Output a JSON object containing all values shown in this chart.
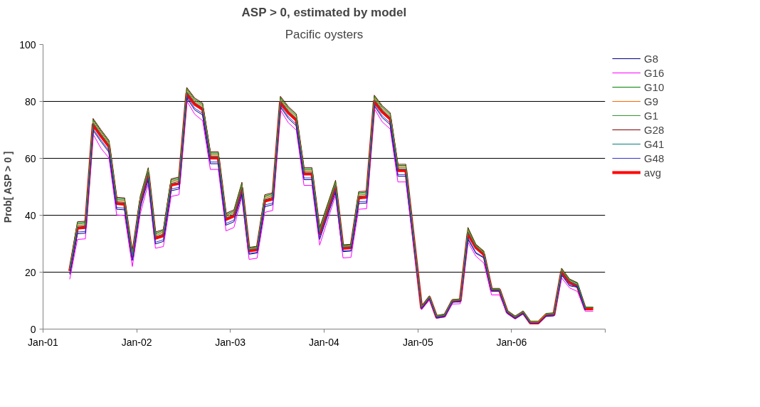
{
  "chart_data": {
    "type": "line",
    "title": "ASP > 0, estimated by model",
    "subtitle": "Pacific oysters",
    "ylabel": "Prob[ ASP > 0 ]",
    "x": [
      "2001-04-15",
      "2001-05-15",
      "2001-06-15",
      "2001-07-15",
      "2001-08-15",
      "2001-09-15",
      "2001-10-15",
      "2001-11-15",
      "2001-12-15",
      "2002-01-15",
      "2002-02-15",
      "2002-03-15",
      "2002-04-15",
      "2002-05-15",
      "2002-06-15",
      "2002-07-15",
      "2002-08-15",
      "2002-09-15",
      "2002-10-15",
      "2002-11-15",
      "2002-12-15",
      "2003-01-15",
      "2003-02-15",
      "2003-03-15",
      "2003-04-15",
      "2003-05-15",
      "2003-06-15",
      "2003-07-15",
      "2003-08-15",
      "2003-09-15",
      "2003-10-15",
      "2003-11-15",
      "2003-12-15",
      "2004-02-15",
      "2004-03-15",
      "2004-04-15",
      "2004-05-15",
      "2004-06-15",
      "2004-07-15",
      "2004-08-15",
      "2004-09-15",
      "2004-10-15",
      "2004-11-15",
      "2005-01-15",
      "2005-02-15",
      "2005-03-15",
      "2005-04-15",
      "2005-05-15",
      "2005-06-15",
      "2005-07-15",
      "2005-08-15",
      "2005-09-15",
      "2005-10-15",
      "2005-11-15",
      "2005-12-15",
      "2006-01-15",
      "2006-02-15",
      "2006-03-15",
      "2006-04-15",
      "2006-05-15",
      "2006-06-15",
      "2006-07-15",
      "2006-08-15",
      "2006-09-15",
      "2006-10-15",
      "2006-11-15"
    ],
    "series": [
      {
        "name": "G8",
        "color": "#000080",
        "values": [
          19.2,
          33.5,
          33.7,
          69.8,
          65.8,
          62.1,
          42.1,
          41.9,
          24.1,
          42.6,
          52.5,
          29.9,
          30.8,
          48.6,
          49.2,
          81.2,
          77,
          75.2,
          58.1,
          58.1,
          36.5,
          37.7,
          47.4,
          26.3,
          26.7,
          43,
          43.7,
          78,
          74,
          71.4,
          52.5,
          52.5,
          31.5,
          48.1,
          27.2,
          27.4,
          44.1,
          44.3,
          78.4,
          74.3,
          71.8,
          53.7,
          53.7,
          7.1,
          10.7,
          3.9,
          4.4,
          9.4,
          9.6,
          31.5,
          26.6,
          25,
          13.3,
          13.3,
          5.6,
          3.7,
          5.4,
          2,
          2,
          4.5,
          4.7,
          19,
          15.2,
          14.7,
          6.7,
          null
        ]
      },
      {
        "name": "G16",
        "color": "#ff00ff",
        "values": [
          17.5,
          31.5,
          31.7,
          68.5,
          63.5,
          60.1,
          40.1,
          39.9,
          22,
          40.6,
          51,
          28.4,
          29,
          46.6,
          47.2,
          80.2,
          75.5,
          73.2,
          56.1,
          56.1,
          34.5,
          35.7,
          46.5,
          24.5,
          24.9,
          41,
          41.7,
          77,
          72.5,
          69.9,
          50.5,
          50.5,
          29.5,
          47,
          25,
          25.2,
          42.1,
          42.3,
          77.5,
          72.8,
          70.3,
          51.7,
          51.7,
          6.8,
          10.2,
          3.8,
          4.2,
          8.8,
          8.9,
          30.5,
          25.6,
          23.2,
          12,
          12,
          5.4,
          3.6,
          5.3,
          2,
          2,
          4.4,
          4.6,
          18,
          14.5,
          13.2,
          6.3,
          6.3
        ]
      },
      {
        "name": "G10",
        "color": "#008000",
        "values": [
          21.4,
          37.3,
          37.5,
          73.6,
          69.6,
          65.9,
          45.9,
          45.7,
          26.3,
          46.4,
          56.3,
          33.7,
          34.6,
          52.4,
          53,
          84.5,
          80.8,
          79,
          61.9,
          61.9,
          40.3,
          41.5,
          51.2,
          28.5,
          28.9,
          46.8,
          47.5,
          81.4,
          77.8,
          75.2,
          56.3,
          56.3,
          35.3,
          51.9,
          29.4,
          29.6,
          47.9,
          48.1,
          81.8,
          78.1,
          75.6,
          57.5,
          57.5,
          8,
          11.6,
          4.7,
          5.2,
          10.3,
          10.5,
          35.3,
          29.6,
          27.2,
          14.2,
          14.2,
          6.5,
          4.5,
          6.3,
          2.7,
          2.7,
          5.4,
          5.6,
          21.2,
          17.4,
          16.1,
          7.6,
          7.6
        ]
      },
      {
        "name": "G9",
        "color": "#ff6600",
        "values": [
          21,
          36.5,
          36.7,
          72.8,
          68.8,
          65.1,
          45.1,
          44.9,
          25.9,
          45.6,
          55.5,
          32.9,
          33.8,
          51.6,
          52.2,
          83.7,
          80,
          78.2,
          61.1,
          61.1,
          39.5,
          40.7,
          50.4,
          28.1,
          28.5,
          46,
          46.7,
          80.6,
          77,
          74.4,
          55.5,
          55.5,
          34.5,
          51.1,
          29,
          29.2,
          47.1,
          47.3,
          81,
          77.3,
          74.8,
          56.7,
          56.7,
          7.8,
          11.4,
          4.5,
          5,
          10.1,
          10.3,
          34.5,
          29.2,
          26.8,
          14,
          14,
          6.3,
          4.3,
          6.1,
          2.5,
          2.5,
          5.2,
          5.4,
          20.8,
          17,
          null,
          null,
          null
        ]
      },
      {
        "name": "G1",
        "color": "#339933",
        "values": [
          21.2,
          36.9,
          37.1,
          73.2,
          69.2,
          65.5,
          45.5,
          45.3,
          26.1,
          46,
          55.9,
          33.3,
          34.2,
          52,
          52.6,
          84.1,
          80.4,
          78.6,
          61.5,
          61.5,
          39.9,
          41.1,
          50.8,
          28.3,
          28.7,
          46.4,
          47.1,
          81,
          77.4,
          74.8,
          55.9,
          55.9,
          34.9,
          51.5,
          29.2,
          29.4,
          47.5,
          47.7,
          81.4,
          77.7,
          75.2,
          57.1,
          57.1,
          7.9,
          11.5,
          4.6,
          5.1,
          10.2,
          10.4,
          34.9,
          29.4,
          27,
          14.1,
          14.1,
          6.4,
          4.4,
          6.2,
          2.6,
          2.6,
          5.3,
          5.5,
          21,
          17.2,
          15.9,
          7.5,
          7.5
        ]
      },
      {
        "name": "G28",
        "color": "#800000",
        "values": [
          21.6,
          37.7,
          37.9,
          74,
          70,
          66.3,
          46.3,
          46.1,
          26.5,
          46.8,
          56.7,
          34.1,
          35,
          52.8,
          53.4,
          84.9,
          81.2,
          79.4,
          62.3,
          62.3,
          40.7,
          41.9,
          51.6,
          28.7,
          29.1,
          47.2,
          47.9,
          81.8,
          78.2,
          75.6,
          56.7,
          56.7,
          35.7,
          52.3,
          29.6,
          29.8,
          48.3,
          48.5,
          82.2,
          78.5,
          76,
          57.9,
          57.9,
          8.1,
          11.7,
          4.8,
          5.3,
          10.4,
          10.6,
          35.7,
          29.8,
          27.4,
          14.3,
          14.3,
          6.6,
          4.6,
          6.4,
          2.8,
          2.8,
          5.5,
          5.7,
          21.4,
          17.6,
          16.3,
          7.7,
          7.7
        ]
      },
      {
        "name": "G41",
        "color": "#008080",
        "values": [
          20.8,
          36.1,
          36.3,
          72.4,
          68.4,
          64.7,
          44.7,
          44.5,
          25.7,
          45.2,
          55.1,
          32.5,
          33.4,
          51.2,
          51.8,
          83.3,
          79.6,
          77.8,
          60.7,
          60.7,
          39.1,
          40.3,
          50,
          27.9,
          28.3,
          45.6,
          46.3,
          80.2,
          76.6,
          74,
          55.1,
          55.1,
          34.1,
          50.7,
          28.8,
          29,
          46.7,
          46.9,
          80.6,
          76.9,
          74.4,
          56.3,
          56.3,
          7.7,
          11.3,
          4.4,
          4.9,
          10,
          10.2,
          34.1,
          29,
          26.6,
          13.9,
          13.9,
          6.2,
          4.2,
          6,
          2.4,
          null,
          5.1,
          5.3,
          20.6,
          16.8,
          15.5,
          7.3,
          null
        ]
      },
      {
        "name": "G48",
        "color": "#3333cc",
        "values": [
          19.5,
          34.1,
          34.3,
          70.4,
          66.4,
          62.7,
          42.7,
          42.5,
          24.4,
          43.2,
          53.1,
          30.5,
          31.4,
          49.2,
          49.8,
          81.8,
          77.6,
          75.8,
          58.7,
          58.7,
          37.1,
          38.3,
          48,
          26.6,
          27,
          43.6,
          44.3,
          78.6,
          74.6,
          72,
          53.1,
          53.1,
          32.1,
          48.7,
          27.5,
          27.7,
          44.7,
          44.9,
          79,
          74.9,
          72.4,
          54.3,
          54.3,
          7.2,
          10.8,
          4,
          4.5,
          9.5,
          9.7,
          32.1,
          26.9,
          25.3,
          13.4,
          13.4,
          5.7,
          3.8,
          5.5,
          2.1,
          2.1,
          4.6,
          4.8,
          19.3,
          15.5,
          15,
          6.8,
          null
        ]
      },
      {
        "name": "avg",
        "color": "#ff0000",
        "values": [
          20.4,
          35.5,
          35.7,
          71.8,
          67.8,
          64.1,
          44.1,
          43.9,
          25.3,
          44.6,
          54.5,
          31.9,
          32.8,
          50.6,
          51.2,
          82.7,
          79,
          77.2,
          60.1,
          60.1,
          38.5,
          39.7,
          49.4,
          27.5,
          27.9,
          45,
          45.7,
          79.6,
          76,
          73.4,
          54.5,
          54.5,
          33.5,
          50.1,
          28.4,
          28.6,
          46.1,
          46.3,
          80,
          76.3,
          73.8,
          55.7,
          55.7,
          7.5,
          11.1,
          4.2,
          4.7,
          9.8,
          10,
          33.5,
          28.6,
          26.2,
          13.7,
          13.7,
          6,
          4,
          5.8,
          2.2,
          2.2,
          4.9,
          5.1,
          20.2,
          16.4,
          15.1,
          7.1,
          7.1
        ]
      }
    ],
    "xlim": [
      "2001-01-01",
      "2007-01-01"
    ],
    "xticks": [
      {
        "value": "2001-01-01",
        "label": "Jan-01"
      },
      {
        "value": "2002-01-01",
        "label": "Jan-02"
      },
      {
        "value": "2003-01-01",
        "label": "Jan-03"
      },
      {
        "value": "2004-01-01",
        "label": "Jan-04"
      },
      {
        "value": "2005-01-01",
        "label": "Jan-05"
      },
      {
        "value": "2006-01-01",
        "label": "Jan-06"
      },
      {
        "value": "2007-01-01",
        "label": null
      }
    ],
    "ylim": [
      0,
      100
    ],
    "yticks": [
      0,
      20,
      40,
      60,
      80,
      100
    ],
    "grid": "y",
    "legend": "top right",
    "marker": "none",
    "line_style": "solid"
  }
}
